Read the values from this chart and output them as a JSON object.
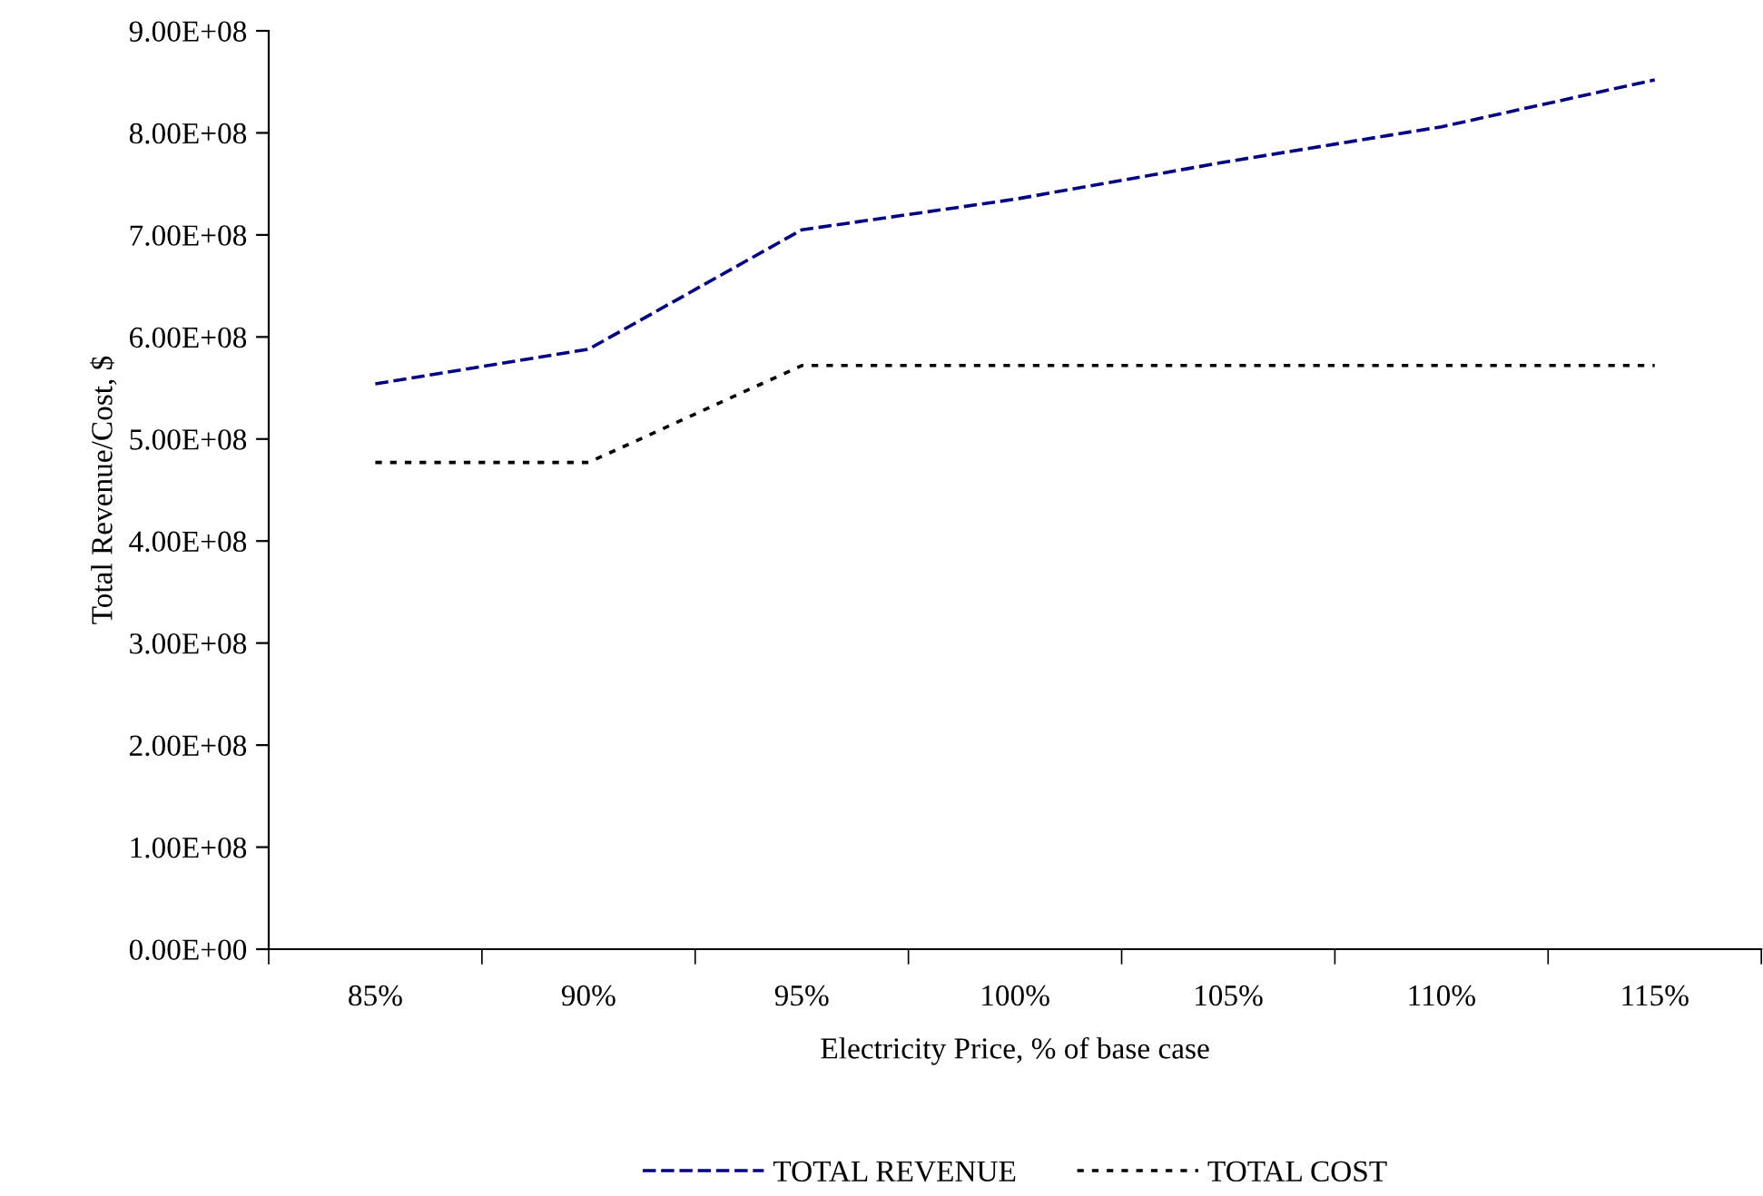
{
  "chart_data": {
    "type": "line",
    "xlabel": "Electricity Price, % of base case",
    "ylabel": "Total Revenue/Cost, $",
    "categories": [
      "85%",
      "90%",
      "95%",
      "100%",
      "105%",
      "110%",
      "115%"
    ],
    "series": [
      {
        "name": "TOTAL REVENUE",
        "color": "#000080",
        "line_style": "dashed",
        "values": [
          554000000,
          588000000,
          705000000,
          735000000,
          772000000,
          806000000,
          852000000
        ]
      },
      {
        "name": "TOTAL COST",
        "color": "#000000",
        "line_style": "dotted",
        "values": [
          477000000,
          477000000,
          572000000,
          572000000,
          572000000,
          572000000,
          572000000
        ]
      }
    ],
    "ylim": [
      0,
      900000000
    ],
    "yticks": [
      {
        "value": 0,
        "label": "0.00E+00"
      },
      {
        "value": 100000000,
        "label": "1.00E+08"
      },
      {
        "value": 200000000,
        "label": "2.00E+08"
      },
      {
        "value": 300000000,
        "label": "3.00E+08"
      },
      {
        "value": 400000000,
        "label": "4.00E+08"
      },
      {
        "value": 500000000,
        "label": "5.00E+08"
      },
      {
        "value": 600000000,
        "label": "6.00E+08"
      },
      {
        "value": 700000000,
        "label": "7.00E+08"
      },
      {
        "value": 800000000,
        "label": "8.00E+08"
      },
      {
        "value": 900000000,
        "label": "9.00E+08"
      }
    ],
    "grid": false,
    "legend": "bottom",
    "marker": "none"
  }
}
